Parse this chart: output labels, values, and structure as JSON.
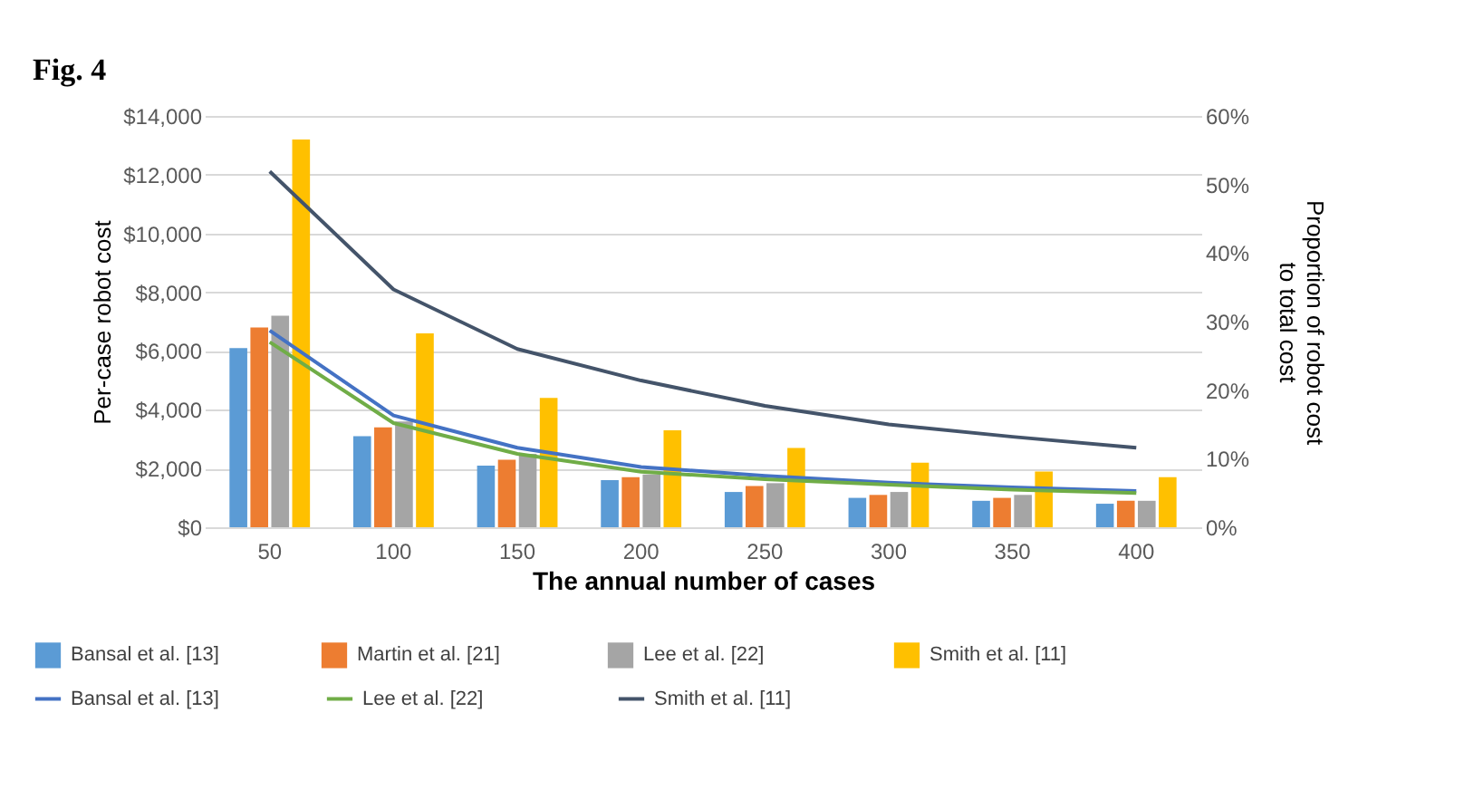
{
  "chart_data": {
    "type": "bar",
    "title": "Fig. 4",
    "xlabel": "The annual number of cases",
    "ylabel": "Per-case robot cost",
    "y2label": "Proportion of robot cost to total cost",
    "categories": [
      "50",
      "100",
      "150",
      "200",
      "250",
      "300",
      "350",
      "400"
    ],
    "series": [
      {
        "name": "Bansal et al. [13]",
        "color": "#5b9bd5",
        "values": [
          6100,
          3100,
          2100,
          1600,
          1200,
          1000,
          900,
          800
        ]
      },
      {
        "name": "Martin et al. [21]",
        "color": "#ed7d31",
        "values": [
          6800,
          3400,
          2300,
          1700,
          1400,
          1100,
          1000,
          900
        ]
      },
      {
        "name": "Lee et al.  [22]",
        "color": "#a5a5a5",
        "values": [
          7200,
          3600,
          2500,
          1800,
          1500,
          1200,
          1100,
          900
        ]
      },
      {
        "name": "Smith et al. [11]",
        "color": "#ffc000",
        "values": [
          13200,
          6600,
          4400,
          3300,
          2700,
          2200,
          1900,
          1700
        ]
      },
      {
        "name": "Bansal et al. [13]",
        "type": "line",
        "axis": "y2",
        "color": "#4472c4",
        "values": [
          28.7,
          16.3,
          11.6,
          8.8,
          7.5,
          6.5,
          5.8,
          5.3
        ]
      },
      {
        "name": "Lee et al.  [22]",
        "type": "line",
        "axis": "y2",
        "color": "#70ad47",
        "values": [
          27,
          15.2,
          10.7,
          8.1,
          7,
          6.2,
          5.5,
          5
        ]
      },
      {
        "name": "Smith et al. [11]",
        "type": "line",
        "axis": "y2",
        "color": "#44546a",
        "values": [
          51.9,
          34.7,
          26,
          21.4,
          17.7,
          15,
          13.2,
          11.6
        ]
      }
    ],
    "ylim": [
      0,
      14000
    ],
    "yticks": [
      {
        "value": 0,
        "label": "$0"
      },
      {
        "value": 2000,
        "label": "$2,000"
      },
      {
        "value": 4000,
        "label": "$4,000"
      },
      {
        "value": 6000,
        "label": "$6,000"
      },
      {
        "value": 8000,
        "label": "$8,000"
      },
      {
        "value": 10000,
        "label": "$10,000"
      },
      {
        "value": 12000,
        "label": "$12,000"
      },
      {
        "value": 14000,
        "label": "$14,000"
      }
    ],
    "y2lim": [
      0,
      60
    ],
    "y2ticks": [
      {
        "value": 0,
        "label": "0%"
      },
      {
        "value": 10,
        "label": "10%"
      },
      {
        "value": 20,
        "label": "20%"
      },
      {
        "value": 30,
        "label": "30%"
      },
      {
        "value": 40,
        "label": "40%"
      },
      {
        "value": 50,
        "label": "50%"
      },
      {
        "value": 60,
        "label": "60%"
      }
    ],
    "grid": "y",
    "legend": "bottom",
    "marker": "none",
    "line_style": "solid"
  }
}
